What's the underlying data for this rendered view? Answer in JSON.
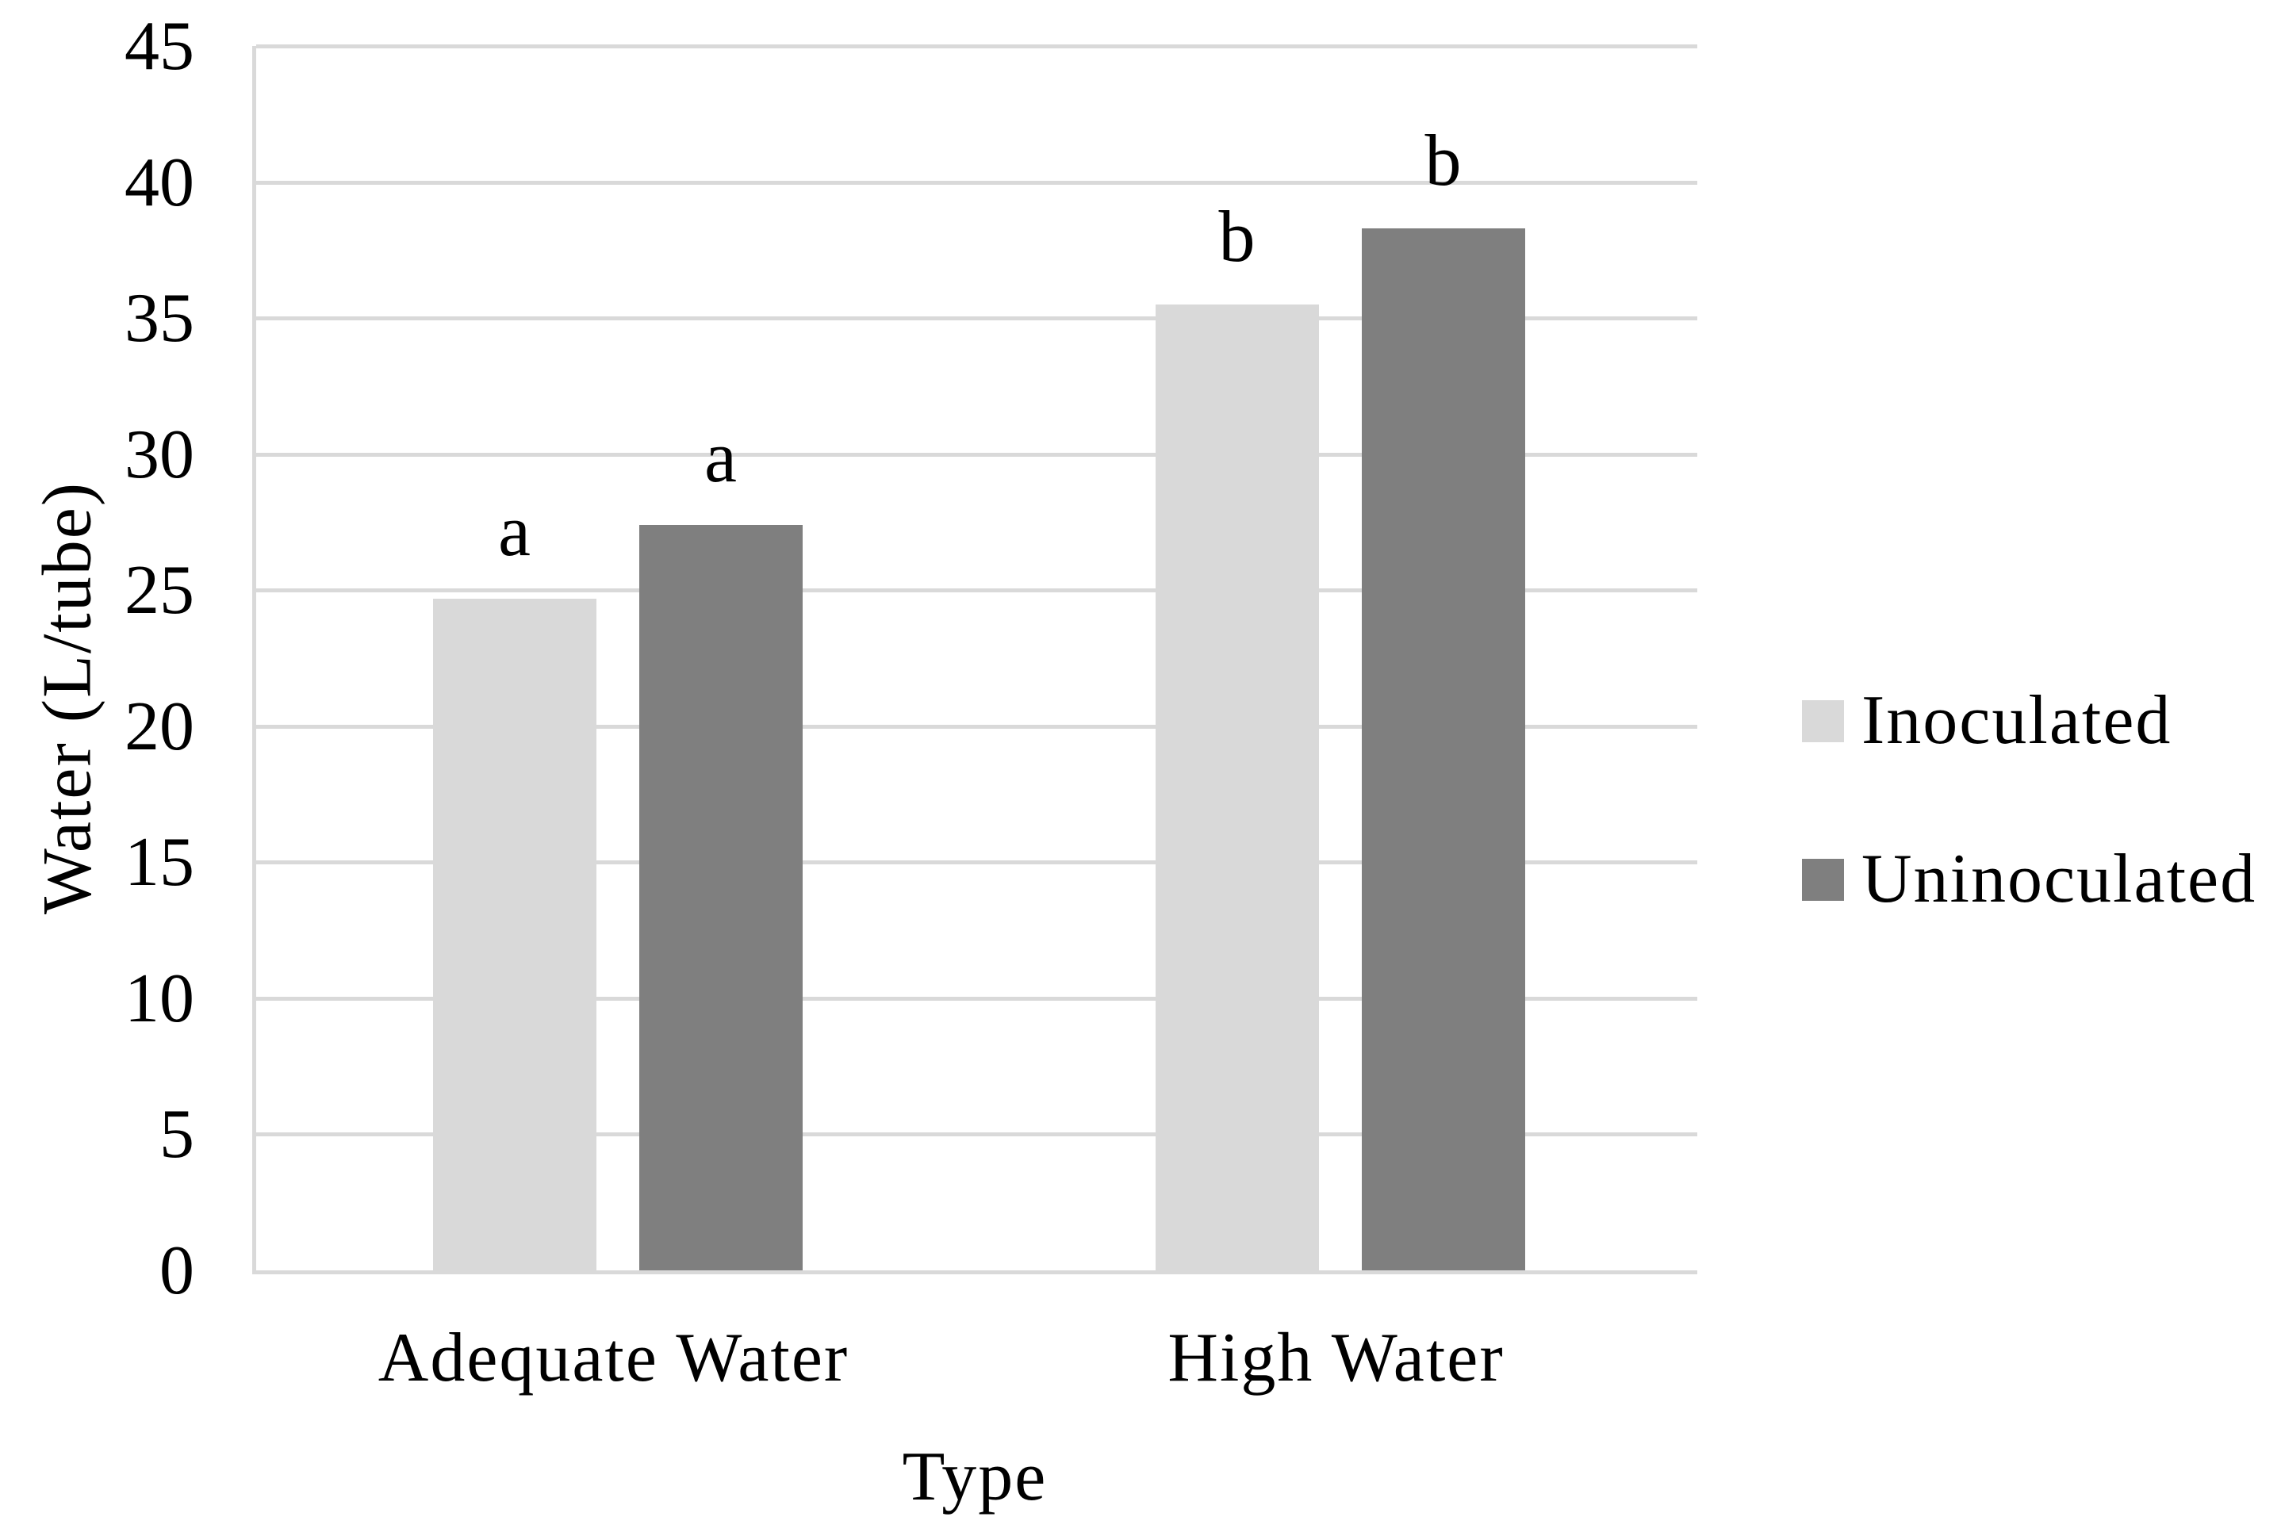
{
  "chart_data": {
    "type": "bar",
    "title": "",
    "xlabel": "Type",
    "ylabel": "Water (L/tube)",
    "categories": [
      "Adequate Water",
      "High Water"
    ],
    "series": [
      {
        "name": "Inoculated",
        "color": "#d9d9d9",
        "values": [
          24.7,
          35.5
        ],
        "bar_labels": [
          "a",
          "b"
        ]
      },
      {
        "name": "Uninoculated",
        "color": "#7f7f7f",
        "values": [
          27.4,
          38.3
        ],
        "bar_labels": [
          "a",
          "b"
        ]
      }
    ],
    "ylim": [
      0,
      45
    ],
    "yticks": [
      0,
      5,
      10,
      15,
      20,
      25,
      30,
      35,
      40,
      45
    ],
    "grid": "horizontal",
    "legend_position": "right",
    "axis_color": "#d9d9d9",
    "gridline_color": "#d9d9d9",
    "text_color": "#000000",
    "background": "#ffffff"
  }
}
